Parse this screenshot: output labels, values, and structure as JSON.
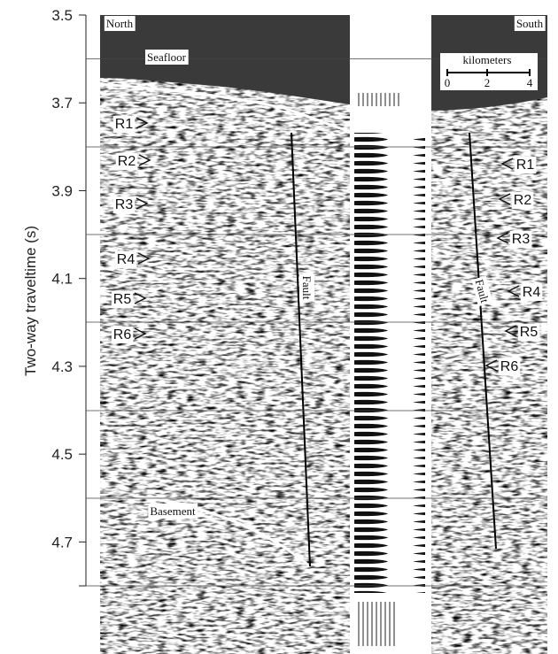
{
  "axis": {
    "title": "Two-way traveltime (s)",
    "ylim": [
      3.5,
      4.8
    ],
    "ticks": [
      3.5,
      3.7,
      3.9,
      4.1,
      4.3,
      4.5,
      4.7
    ]
  },
  "profile": {
    "north": "North",
    "south": "South",
    "seafloor": "Seafloor",
    "basement": "Basement",
    "fault_left": "Fault",
    "fault_right": "Fault",
    "reflectors_left": [
      "R1",
      "R2",
      "R3",
      "R4",
      "R5",
      "R6"
    ],
    "reflectors_right": [
      "R1",
      "R2",
      "R3",
      "R4",
      "R5",
      "R6"
    ]
  },
  "scale_bar": {
    "title": "kilometers",
    "labels": [
      "0",
      "2",
      "4"
    ]
  }
}
